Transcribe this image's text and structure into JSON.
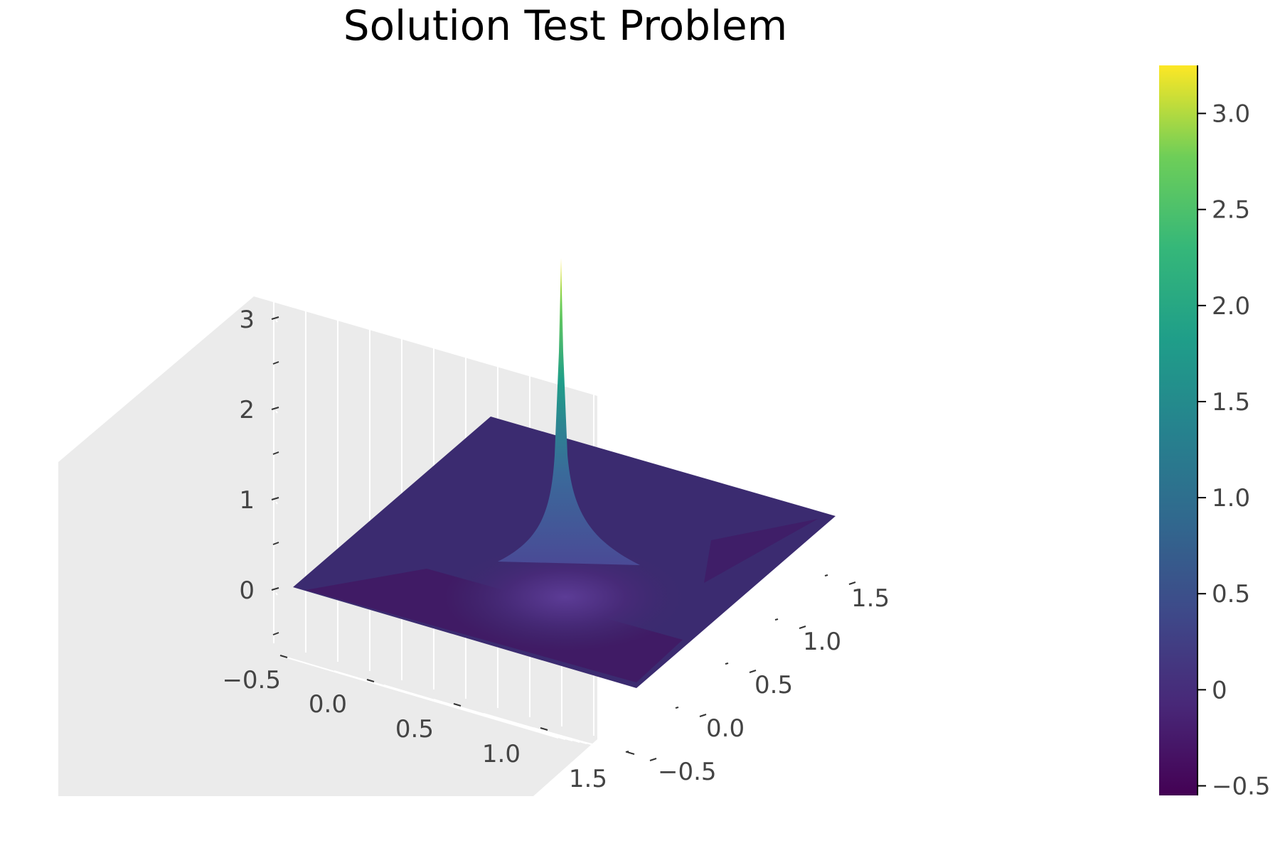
{
  "chart_data": {
    "type": "surface",
    "title": "Solution Test Problem",
    "xlabel": "",
    "ylabel": "",
    "zlabel": "",
    "x_ticks": [
      "−0.5",
      "0.0",
      "0.5",
      "1.0",
      "1.5"
    ],
    "y_ticks": [
      "−0.5",
      "0.0",
      "0.5",
      "1.0",
      "1.5"
    ],
    "z_ticks": [
      "0",
      "1",
      "2",
      "3"
    ],
    "xlim": [
      -0.5,
      1.5
    ],
    "ylim": [
      -0.5,
      1.5
    ],
    "zlim": [
      -0.55,
      3.25
    ],
    "surface": {
      "domain_x": [
        0,
        1
      ],
      "domain_y": [
        0,
        1
      ],
      "peak": {
        "x": 0.5,
        "y": 0.5,
        "value": 3.25
      },
      "min_value": -0.55,
      "border_value": 0.0,
      "description_values": {
        "plateau": 0.0,
        "trough": -0.5
      }
    },
    "colorbar": {
      "ticks": [
        "−0.5",
        "0",
        "0.5",
        "1.0",
        "1.5",
        "2.0",
        "2.5",
        "3.0"
      ],
      "tick_values": [
        -0.5,
        0,
        0.5,
        1.0,
        1.5,
        2.0,
        2.5,
        3.0
      ],
      "range": [
        -0.55,
        3.25
      ],
      "colormap": "viridis"
    },
    "grid": true,
    "legend": "none"
  },
  "colors": {
    "pane": "#ebebeb",
    "grid": "#ffffff",
    "viridis_low": "#440154",
    "viridis_mid": "#21918c",
    "viridis_high": "#fde725"
  }
}
